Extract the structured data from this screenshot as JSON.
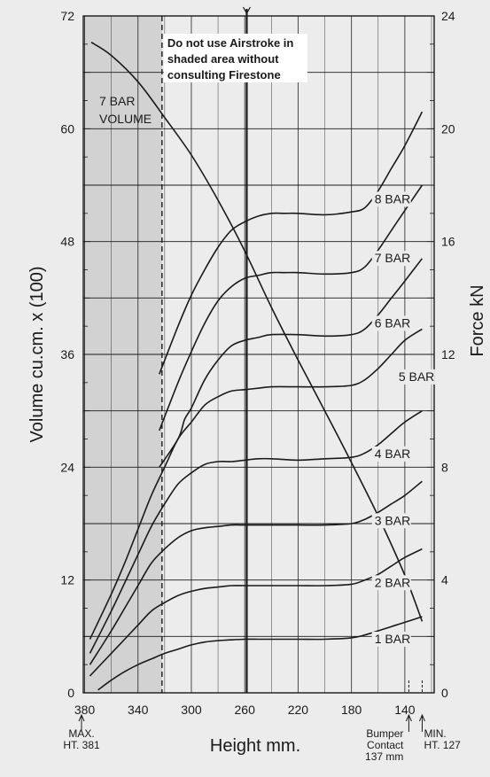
{
  "chart_data": {
    "type": "line",
    "xlabel": "Height mm.",
    "ylabel_left": "Volume cu.cm. x (100)",
    "ylabel_right": "Force kN",
    "x_ticks": [
      380,
      340,
      300,
      260,
      220,
      180,
      140
    ],
    "x_tick_labels": [
      "380",
      "340",
      "300",
      "260",
      "220",
      "180",
      "140"
    ],
    "xlim": [
      381,
      118
    ],
    "ylim_left": [
      0,
      72
    ],
    "y_left_ticks": [
      0,
      12,
      24,
      36,
      48,
      60,
      72
    ],
    "y_left_tick_labels": [
      "0",
      "12",
      "24",
      "36",
      "48",
      "60",
      "72"
    ],
    "ylim_right": [
      0,
      24
    ],
    "y_right_ticks": [
      0,
      4,
      8,
      12,
      16,
      20,
      24
    ],
    "y_right_tick_labels": [
      "0",
      "4",
      "8",
      "12",
      "16",
      "20",
      "24"
    ],
    "grid": true,
    "shaded_region": {
      "x_from": 381,
      "x_to": 322
    },
    "annotation": [
      "Do not use Airstroke in",
      "shaded area without",
      "consulting Firestone"
    ],
    "volume_series": {
      "name": "7 BAR VOLUME",
      "name_lines": [
        "7 BAR",
        "VOLUME"
      ],
      "axis": "left",
      "x": [
        375,
        360,
        340,
        320,
        300,
        280,
        260,
        240,
        220,
        200,
        180,
        160,
        140,
        127
      ],
      "y": [
        69.2,
        67.8,
        65.0,
        61.2,
        57.2,
        52.4,
        47.0,
        41.0,
        35.4,
        30.0,
        24.5,
        18.8,
        12.5,
        7.6
      ]
    },
    "series": [
      {
        "name": "8 BAR",
        "axis": "right",
        "x": [
          324,
          310,
          300,
          290,
          280,
          270,
          260,
          250,
          240,
          230,
          220,
          200,
          180,
          170,
          160,
          150,
          140,
          127
        ],
        "y": [
          11.3,
          13.0,
          14.1,
          15.0,
          15.8,
          16.4,
          16.7,
          16.9,
          17.0,
          17.0,
          17.0,
          16.95,
          17.05,
          17.2,
          17.8,
          18.6,
          19.4,
          20.6
        ]
      },
      {
        "name": "7 BAR",
        "axis": "right",
        "x": [
          324,
          310,
          300,
          290,
          280,
          270,
          260,
          250,
          240,
          230,
          220,
          200,
          180,
          170,
          160,
          150,
          140,
          127
        ],
        "y": [
          9.3,
          11.0,
          12.1,
          13.1,
          13.9,
          14.4,
          14.7,
          14.8,
          14.9,
          14.9,
          14.9,
          14.85,
          14.9,
          15.1,
          15.7,
          16.4,
          17.1,
          18.0
        ]
      },
      {
        "name": "6 BAR",
        "axis": "right",
        "x": [
          324,
          310,
          305,
          300,
          290,
          280,
          270,
          260,
          250,
          240,
          220,
          200,
          180,
          170,
          160,
          150,
          140,
          127
        ],
        "y": [
          8.0,
          9.0,
          9.7,
          10.1,
          11.1,
          11.8,
          12.3,
          12.5,
          12.6,
          12.7,
          12.7,
          12.65,
          12.7,
          12.9,
          13.4,
          14.0,
          14.6,
          15.4
        ]
      },
      {
        "name": "5 BAR",
        "axis": "right",
        "x": [
          376,
          360,
          350,
          340,
          330,
          320,
          310,
          300,
          290,
          280,
          270,
          260,
          250,
          240,
          220,
          200,
          180,
          170,
          160,
          150,
          140,
          127
        ],
        "y": [
          1.9,
          3.5,
          4.6,
          5.8,
          7.0,
          8.0,
          9.0,
          9.6,
          10.2,
          10.5,
          10.7,
          10.75,
          10.8,
          10.85,
          10.85,
          10.85,
          10.9,
          11.1,
          11.5,
          12.0,
          12.5,
          12.9
        ]
      },
      {
        "name": "4 BAR",
        "axis": "right",
        "x": [
          376,
          360,
          350,
          340,
          330,
          320,
          310,
          300,
          290,
          280,
          270,
          260,
          250,
          240,
          220,
          200,
          180,
          170,
          160,
          150,
          140,
          127
        ],
        "y": [
          1.4,
          2.9,
          3.9,
          4.9,
          5.9,
          6.7,
          7.4,
          7.8,
          8.1,
          8.2,
          8.2,
          8.25,
          8.3,
          8.3,
          8.25,
          8.3,
          8.35,
          8.5,
          8.8,
          9.2,
          9.6,
          10.0
        ]
      },
      {
        "name": "3 BAR",
        "axis": "right",
        "x": [
          376,
          360,
          350,
          340,
          330,
          320,
          310,
          300,
          290,
          280,
          270,
          260,
          250,
          240,
          220,
          200,
          180,
          170,
          160,
          150,
          140,
          127
        ],
        "y": [
          1.0,
          2.2,
          3.0,
          3.8,
          4.6,
          5.1,
          5.5,
          5.75,
          5.85,
          5.9,
          5.95,
          5.95,
          5.95,
          5.95,
          5.95,
          5.95,
          6.0,
          6.15,
          6.4,
          6.7,
          7.0,
          7.5
        ]
      },
      {
        "name": "2 BAR",
        "axis": "right",
        "x": [
          376,
          360,
          350,
          340,
          330,
          320,
          310,
          300,
          290,
          280,
          270,
          260,
          250,
          240,
          220,
          200,
          180,
          170,
          160,
          150,
          140,
          127
        ],
        "y": [
          0.6,
          1.4,
          1.9,
          2.4,
          2.9,
          3.2,
          3.45,
          3.6,
          3.7,
          3.75,
          3.8,
          3.8,
          3.8,
          3.8,
          3.8,
          3.8,
          3.85,
          4.0,
          4.2,
          4.5,
          4.8,
          5.1
        ]
      },
      {
        "name": "1 BAR",
        "axis": "right",
        "x": [
          370,
          360,
          350,
          340,
          330,
          320,
          310,
          300,
          290,
          280,
          270,
          260,
          250,
          240,
          220,
          200,
          180,
          170,
          160,
          150,
          140,
          127
        ],
        "y": [
          0.1,
          0.45,
          0.75,
          1.0,
          1.2,
          1.4,
          1.55,
          1.7,
          1.8,
          1.85,
          1.88,
          1.9,
          1.9,
          1.9,
          1.9,
          1.9,
          1.95,
          2.05,
          2.2,
          2.35,
          2.5,
          2.7
        ]
      }
    ],
    "markers": [
      {
        "id": "max-ht",
        "x": 381,
        "lines": [
          "MAX.",
          "HT. 381"
        ]
      },
      {
        "id": "bumper-contact",
        "x": 137,
        "lines": [
          "Bumper",
          "Contact",
          "137 mm"
        ]
      },
      {
        "id": "min-ht",
        "x": 127,
        "lines": [
          "MIN.",
          "HT. 127"
        ]
      }
    ],
    "colors": {
      "background": "#ececec",
      "shaded": "#d2d2d2",
      "line": "#1a1a1a",
      "grid": "#1a1a1a"
    }
  }
}
